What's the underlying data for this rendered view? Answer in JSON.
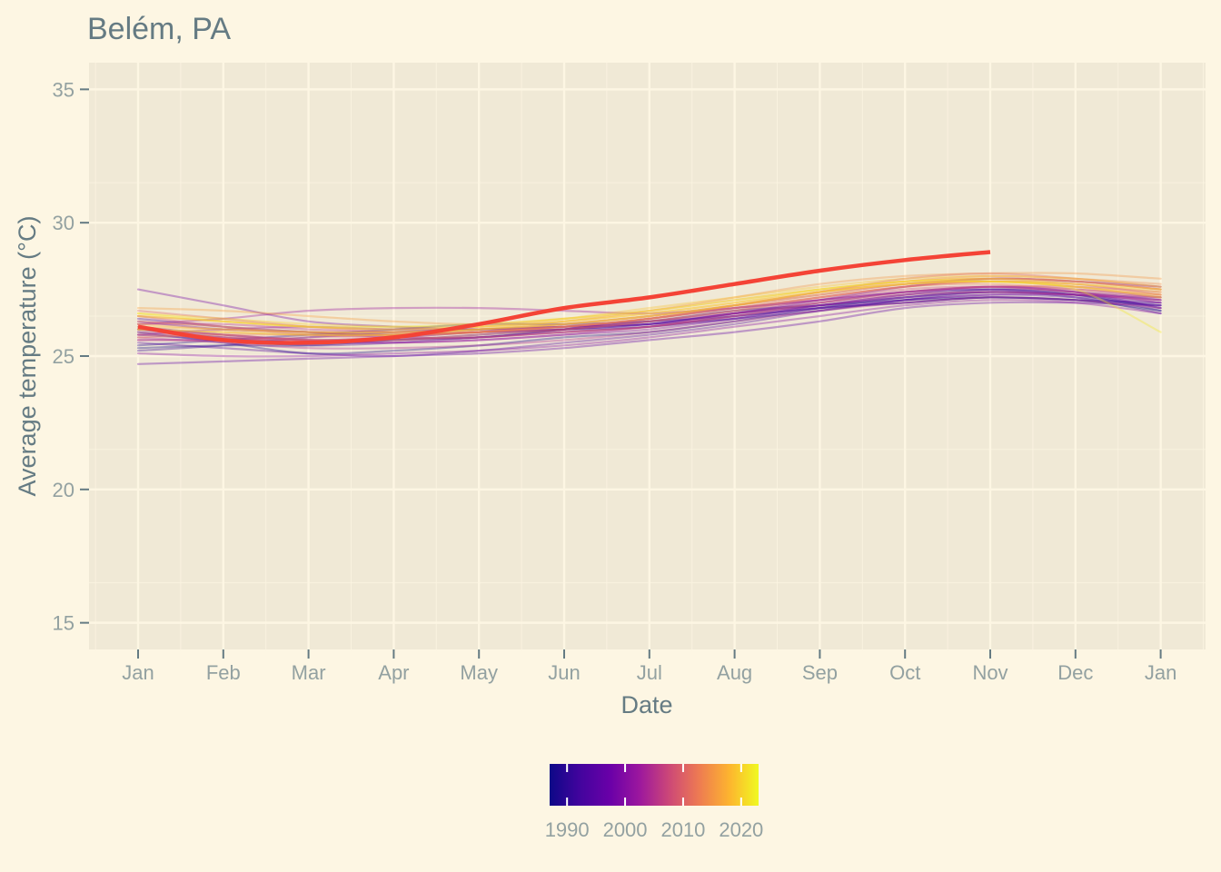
{
  "colors": {
    "page_background": "#fdf6e3",
    "panel_background": "#f0e9d6",
    "grid": "#fdf6e3",
    "title_text": "#657b83",
    "tick_text": "#93a1a1",
    "current_year_line": "#f44336",
    "colormap": "plasma"
  },
  "chart_data": {
    "type": "line",
    "title": "Belém, PA",
    "xlabel": "Date",
    "ylabel": "Average temperature (°C)",
    "ylim": [
      14,
      36
    ],
    "yticks": [
      15,
      20,
      25,
      30,
      35
    ],
    "xticks": [
      "Jan",
      "Feb",
      "Mar",
      "Apr",
      "May",
      "Jun",
      "Jul",
      "Aug",
      "Sep",
      "Oct",
      "Nov",
      "Dec",
      "Jan"
    ],
    "grid": true,
    "legend": {
      "type": "colorbar",
      "placement": "bottom",
      "range": [
        1987,
        2023
      ],
      "ticks": [
        1990,
        2000,
        2010,
        2020
      ]
    },
    "x_positions": [
      0,
      1,
      2,
      3,
      4,
      5,
      6,
      7,
      8,
      9,
      10,
      11,
      12
    ],
    "highlight_series": {
      "x": [
        0,
        1,
        2,
        3,
        4,
        5,
        6,
        7,
        8,
        9,
        10
      ],
      "values": [
        26.1,
        25.6,
        25.5,
        25.7,
        26.2,
        26.8,
        27.2,
        27.7,
        28.2,
        28.6,
        28.9
      ]
    },
    "series": [
      {
        "year": 1987,
        "values": [
          25.3,
          25.4,
          25.4,
          25.6,
          25.7,
          26.0,
          26.3,
          26.7,
          26.9,
          27.1,
          27.2,
          27.1,
          26.7
        ]
      },
      {
        "year": 1988,
        "values": [
          25.9,
          25.5,
          25.1,
          25.2,
          25.4,
          25.7,
          25.9,
          26.3,
          26.8,
          27.2,
          27.4,
          27.3,
          26.8
        ]
      },
      {
        "year": 1989,
        "values": [
          25.4,
          25.6,
          25.8,
          26.0,
          26.2,
          26.2,
          26.3,
          26.5,
          26.8,
          27.0,
          27.2,
          27.1,
          26.9
        ]
      },
      {
        "year": 1990,
        "values": [
          26.0,
          25.7,
          25.5,
          25.6,
          25.8,
          26.0,
          26.2,
          26.6,
          26.9,
          27.3,
          27.5,
          27.3,
          26.7
        ]
      },
      {
        "year": 1991,
        "values": [
          25.2,
          25.4,
          25.7,
          25.9,
          26.0,
          26.1,
          26.2,
          26.4,
          26.7,
          27.1,
          27.4,
          27.2,
          26.6
        ]
      },
      {
        "year": 1992,
        "values": [
          26.4,
          26.1,
          25.9,
          25.8,
          25.9,
          26.0,
          26.1,
          26.5,
          26.8,
          27.0,
          27.2,
          27.1,
          27.0
        ]
      },
      {
        "year": 1993,
        "values": [
          25.8,
          25.6,
          25.4,
          25.5,
          25.7,
          25.9,
          26.1,
          26.4,
          26.9,
          27.2,
          27.5,
          27.4,
          27.1
        ]
      },
      {
        "year": 1994,
        "values": [
          25.5,
          25.3,
          25.1,
          25.0,
          25.2,
          25.5,
          25.8,
          26.2,
          26.7,
          27.1,
          27.3,
          27.2,
          26.9
        ]
      },
      {
        "year": 1995,
        "values": [
          26.1,
          25.8,
          25.6,
          25.7,
          25.9,
          26.0,
          26.2,
          26.6,
          27.0,
          27.4,
          27.5,
          27.3,
          27.0
        ]
      },
      {
        "year": 1996,
        "values": [
          24.7,
          24.8,
          24.9,
          25.0,
          25.1,
          25.3,
          25.6,
          25.9,
          26.3,
          26.8,
          27.0,
          27.0,
          26.9
        ]
      },
      {
        "year": 1997,
        "values": [
          26.3,
          26.0,
          25.9,
          25.7,
          25.7,
          26.0,
          26.4,
          26.8,
          27.1,
          27.4,
          27.6,
          27.4,
          26.8
        ]
      },
      {
        "year": 1998,
        "values": [
          27.5,
          26.9,
          26.3,
          26.1,
          26.0,
          26.1,
          26.2,
          26.6,
          27.1,
          27.6,
          27.9,
          27.8,
          27.6
        ]
      },
      {
        "year": 1999,
        "values": [
          25.6,
          25.6,
          25.5,
          25.5,
          25.6,
          25.8,
          26.0,
          26.4,
          26.8,
          27.1,
          27.3,
          27.3,
          27.1
        ]
      },
      {
        "year": 2000,
        "values": [
          25.1,
          25.0,
          25.0,
          25.1,
          25.2,
          25.4,
          25.7,
          26.1,
          26.5,
          26.9,
          27.1,
          27.0,
          26.6
        ]
      },
      {
        "year": 2001,
        "values": [
          25.8,
          26.0,
          26.1,
          26.0,
          26.0,
          26.1,
          26.3,
          26.6,
          26.9,
          27.2,
          27.4,
          27.3,
          27.2
        ]
      },
      {
        "year": 2002,
        "values": [
          26.2,
          26.4,
          26.7,
          26.8,
          26.8,
          26.7,
          26.6,
          26.8,
          27.1,
          27.4,
          27.6,
          27.5,
          27.2
        ]
      },
      {
        "year": 2003,
        "values": [
          26.0,
          25.8,
          25.6,
          25.5,
          25.6,
          25.8,
          26.1,
          26.5,
          26.9,
          27.3,
          27.6,
          27.4,
          27.0
        ]
      },
      {
        "year": 2004,
        "values": [
          25.7,
          25.5,
          25.3,
          25.3,
          25.4,
          25.6,
          25.9,
          26.3,
          26.7,
          27.0,
          27.2,
          27.1,
          26.8
        ]
      },
      {
        "year": 2005,
        "values": [
          26.2,
          26.2,
          26.0,
          25.9,
          26.0,
          26.2,
          26.5,
          26.9,
          27.3,
          27.7,
          27.9,
          27.8,
          27.5
        ]
      },
      {
        "year": 2006,
        "values": [
          25.9,
          25.7,
          25.6,
          25.6,
          25.7,
          25.9,
          26.1,
          26.6,
          27.0,
          27.3,
          27.4,
          27.3,
          27.1
        ]
      },
      {
        "year": 2007,
        "values": [
          25.6,
          25.6,
          25.7,
          25.8,
          25.9,
          26.0,
          26.3,
          26.7,
          27.1,
          27.5,
          27.6,
          27.4,
          27.2
        ]
      },
      {
        "year": 2008,
        "values": [
          26.5,
          26.1,
          25.8,
          25.7,
          25.7,
          25.9,
          26.1,
          26.5,
          27.0,
          27.4,
          27.6,
          27.6,
          27.4
        ]
      },
      {
        "year": 2009,
        "values": [
          25.8,
          25.7,
          25.6,
          25.7,
          25.9,
          26.1,
          26.4,
          26.8,
          27.2,
          27.6,
          27.8,
          27.7,
          27.3
        ]
      },
      {
        "year": 2010,
        "values": [
          26.7,
          26.4,
          26.1,
          25.9,
          25.9,
          26.1,
          26.4,
          26.9,
          27.4,
          27.9,
          28.1,
          27.9,
          27.6
        ]
      },
      {
        "year": 2011,
        "values": [
          26.0,
          25.8,
          25.6,
          25.6,
          25.8,
          26.0,
          26.3,
          26.7,
          27.2,
          27.6,
          27.8,
          27.6,
          27.2
        ]
      },
      {
        "year": 2012,
        "values": [
          25.7,
          25.8,
          25.8,
          25.8,
          25.9,
          26.1,
          26.4,
          26.8,
          27.2,
          27.6,
          27.7,
          27.5,
          27.3
        ]
      },
      {
        "year": 2013,
        "values": [
          26.3,
          26.1,
          25.9,
          25.8,
          25.9,
          26.2,
          26.5,
          26.9,
          27.4,
          27.7,
          27.9,
          27.8,
          27.5
        ]
      },
      {
        "year": 2014,
        "values": [
          26.0,
          25.9,
          25.8,
          25.8,
          25.9,
          26.1,
          26.4,
          26.9,
          27.4,
          27.8,
          28.0,
          27.9,
          27.7
        ]
      },
      {
        "year": 2015,
        "values": [
          26.5,
          26.3,
          26.1,
          26.0,
          26.1,
          26.3,
          26.7,
          27.2,
          27.7,
          28.0,
          28.1,
          28.1,
          27.9
        ]
      },
      {
        "year": 2016,
        "values": [
          26.8,
          26.7,
          26.5,
          26.3,
          26.2,
          26.4,
          26.7,
          27.1,
          27.5,
          27.8,
          27.9,
          27.8,
          27.5
        ]
      },
      {
        "year": 2017,
        "values": [
          26.2,
          26.0,
          25.9,
          25.9,
          26.0,
          26.2,
          26.5,
          26.9,
          27.3,
          27.7,
          27.8,
          27.6,
          27.3
        ]
      },
      {
        "year": 2018,
        "values": [
          26.1,
          26.0,
          25.9,
          25.9,
          26.0,
          26.3,
          26.6,
          27.0,
          27.4,
          27.7,
          27.8,
          27.7,
          27.4
        ]
      },
      {
        "year": 2019,
        "values": [
          26.5,
          26.3,
          26.1,
          26.0,
          26.1,
          26.4,
          26.8,
          27.2,
          27.6,
          27.9,
          28.0,
          27.9,
          27.6
        ]
      },
      {
        "year": 2020,
        "values": [
          26.6,
          26.4,
          26.2,
          26.1,
          26.1,
          26.3,
          26.6,
          27.0,
          27.5,
          27.8,
          27.9,
          27.7,
          27.5
        ]
      },
      {
        "year": 2021,
        "values": [
          26.0,
          25.9,
          25.8,
          25.8,
          26.0,
          26.2,
          26.5,
          26.9,
          27.4,
          27.7,
          27.8,
          27.6,
          27.2
        ]
      },
      {
        "year": 2022,
        "values": [
          26.6,
          26.3,
          26.1,
          26.1,
          26.2,
          26.4,
          26.7,
          27.1,
          27.5,
          27.8,
          27.8,
          27.5,
          25.9
        ]
      }
    ]
  }
}
